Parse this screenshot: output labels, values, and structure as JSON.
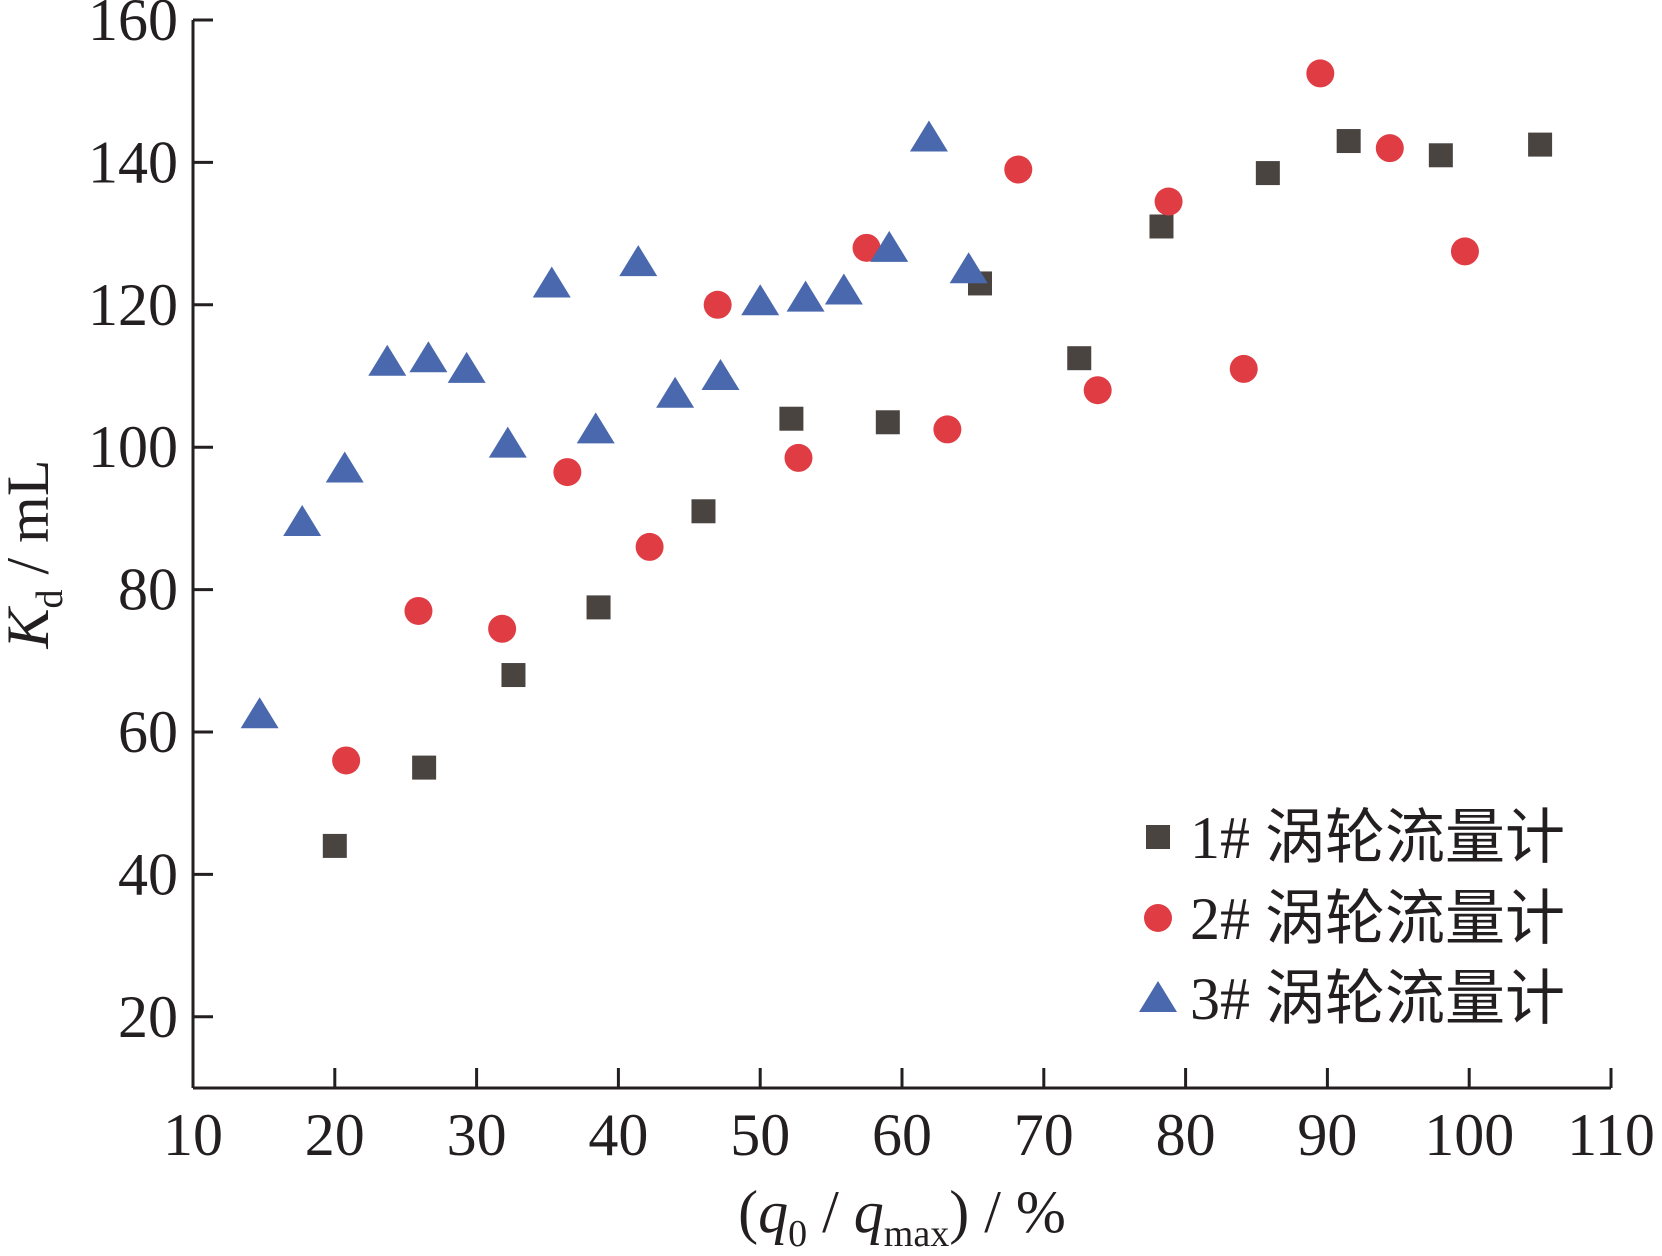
{
  "chart_data": {
    "type": "scatter",
    "title": "",
    "xlabel": {
      "open": "(",
      "q": "q",
      "q_sub": "0",
      "slash": " / ",
      "q2": "q",
      "q2_sub": "max",
      "close": ") / %"
    },
    "ylabel": {
      "k": "K",
      "k_sub": "d",
      "unit": " / mL"
    },
    "xlim": [
      10,
      110
    ],
    "ylim": [
      10,
      160
    ],
    "x_ticks": [
      10,
      20,
      30,
      40,
      50,
      60,
      70,
      80,
      90,
      100,
      110
    ],
    "y_ticks": [
      20,
      40,
      60,
      80,
      100,
      120,
      140,
      160
    ],
    "grid": false,
    "legend_position": "bottom-right",
    "series": [
      {
        "name": "1# 涡轮流量计",
        "marker": "square",
        "color": "#4a4441",
        "points": [
          [
            20.0,
            44
          ],
          [
            26.3,
            55
          ],
          [
            32.6,
            68
          ],
          [
            38.6,
            77.5
          ],
          [
            46.0,
            91
          ],
          [
            52.2,
            104
          ],
          [
            59.0,
            103.5
          ],
          [
            65.5,
            123
          ],
          [
            72.5,
            112.5
          ],
          [
            78.3,
            131
          ],
          [
            85.8,
            138.5
          ],
          [
            91.5,
            143
          ],
          [
            98.0,
            141
          ],
          [
            105.0,
            142.5
          ]
        ]
      },
      {
        "name": "2# 涡轮流量计",
        "marker": "circle",
        "color": "#e03c44",
        "points": [
          [
            20.8,
            56
          ],
          [
            25.9,
            77
          ],
          [
            31.8,
            74.5
          ],
          [
            36.4,
            96.5
          ],
          [
            42.2,
            86
          ],
          [
            47.0,
            120
          ],
          [
            52.7,
            98.5
          ],
          [
            57.5,
            128
          ],
          [
            63.2,
            102.5
          ],
          [
            68.2,
            139
          ],
          [
            73.8,
            108
          ],
          [
            78.8,
            134.5
          ],
          [
            84.1,
            111
          ],
          [
            89.5,
            152.5
          ],
          [
            94.4,
            142
          ],
          [
            99.7,
            127.5
          ]
        ]
      },
      {
        "name": "3# 涡轮流量计",
        "marker": "triangle",
        "color": "#4a68ad",
        "points": [
          [
            14.7,
            62.5
          ],
          [
            17.7,
            89.5
          ],
          [
            20.7,
            97
          ],
          [
            23.7,
            112
          ],
          [
            26.6,
            112.5
          ],
          [
            29.3,
            111
          ],
          [
            32.2,
            100.5
          ],
          [
            35.3,
            123
          ],
          [
            38.4,
            102.5
          ],
          [
            41.4,
            126
          ],
          [
            44.0,
            107.5
          ],
          [
            47.2,
            110
          ],
          [
            50.0,
            120.5
          ],
          [
            53.2,
            121
          ],
          [
            55.9,
            122
          ],
          [
            59.1,
            128
          ],
          [
            61.9,
            143.5
          ],
          [
            64.7,
            125
          ]
        ]
      }
    ]
  }
}
